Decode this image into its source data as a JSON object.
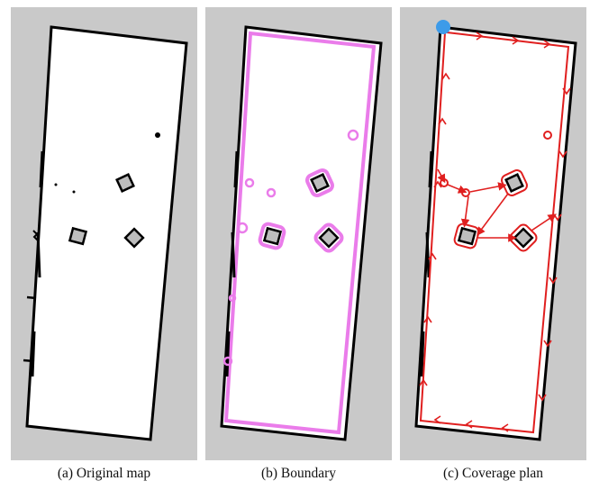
{
  "figure": {
    "panels": [
      {
        "id": "a",
        "caption": "(a) Original map"
      },
      {
        "id": "b",
        "caption": "(b) Boundary"
      },
      {
        "id": "c",
        "caption": "(c) Coverage plan"
      }
    ],
    "colors": {
      "background": "#c9c9c9",
      "free_space": "#ffffff",
      "walls": "#000000",
      "obstacle_fill": "#bdbdbd",
      "boundary": "#ea7cea",
      "coverage_path": "#e01f1f",
      "start_marker": "#3d9be9"
    }
  }
}
